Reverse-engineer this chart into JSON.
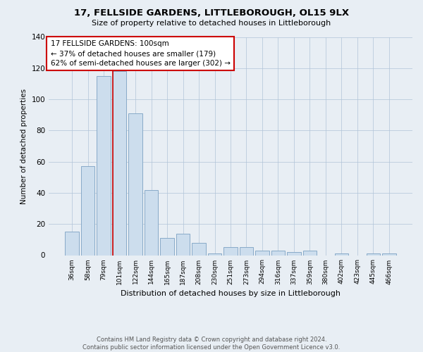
{
  "title": "17, FELLSIDE GARDENS, LITTLEBOROUGH, OL15 9LX",
  "subtitle": "Size of property relative to detached houses in Littleborough",
  "xlabel": "Distribution of detached houses by size in Littleborough",
  "ylabel": "Number of detached properties",
  "bar_labels": [
    "36sqm",
    "58sqm",
    "79sqm",
    "101sqm",
    "122sqm",
    "144sqm",
    "165sqm",
    "187sqm",
    "208sqm",
    "230sqm",
    "251sqm",
    "273sqm",
    "294sqm",
    "316sqm",
    "337sqm",
    "359sqm",
    "380sqm",
    "402sqm",
    "423sqm",
    "445sqm",
    "466sqm"
  ],
  "bar_values": [
    15,
    57,
    115,
    118,
    91,
    42,
    11,
    14,
    8,
    1,
    5,
    5,
    3,
    3,
    2,
    3,
    0,
    1,
    0,
    1,
    1
  ],
  "bar_color": "#ccdded",
  "bar_edge_color": "#88aac8",
  "ylim": [
    0,
    140
  ],
  "yticks": [
    0,
    20,
    40,
    60,
    80,
    100,
    120,
    140
  ],
  "vline_index": 3,
  "vline_color": "#cc0000",
  "annotation_title": "17 FELLSIDE GARDENS: 100sqm",
  "annotation_line1": "← 37% of detached houses are smaller (179)",
  "annotation_line2": "62% of semi-detached houses are larger (302) →",
  "annotation_box_color": "#ffffff",
  "annotation_box_edge": "#cc0000",
  "footer_line1": "Contains HM Land Registry data © Crown copyright and database right 2024.",
  "footer_line2": "Contains public sector information licensed under the Open Government Licence v3.0.",
  "background_color": "#e8eef4",
  "plot_bg_color": "#e8eef4",
  "grid_color": "#b0c4d8",
  "title_fontsize": 9.5,
  "subtitle_fontsize": 8,
  "ylabel_fontsize": 7.5,
  "xlabel_fontsize": 8,
  "ytick_fontsize": 7.5,
  "xtick_fontsize": 6.5,
  "ann_fontsize": 7.5,
  "footer_fontsize": 6
}
